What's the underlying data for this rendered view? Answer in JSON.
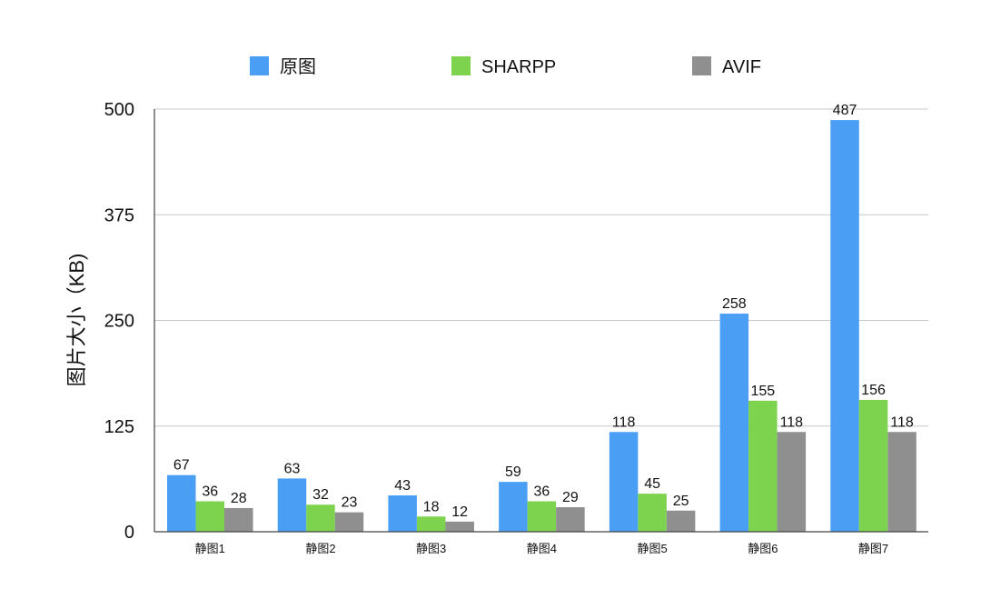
{
  "chart_data": {
    "type": "bar",
    "categories": [
      "静图1",
      "静图2",
      "静图3",
      "静图4",
      "静图5",
      "静图6",
      "静图7"
    ],
    "series": [
      {
        "name": "原图",
        "color": "#4a9ff5",
        "values": [
          67,
          63,
          43,
          59,
          118,
          258,
          487
        ]
      },
      {
        "name": "SHARPP",
        "color": "#7dd24e",
        "values": [
          36,
          32,
          18,
          36,
          45,
          155,
          156
        ]
      },
      {
        "name": "AVIF",
        "color": "#8f8f8f",
        "values": [
          28,
          23,
          12,
          29,
          25,
          118,
          118
        ]
      }
    ],
    "ylabel": "图片大小（KB)",
    "xlabel": "",
    "ylim": [
      0,
      500
    ],
    "yticks": [
      0,
      125,
      250,
      375,
      500
    ],
    "grid": true,
    "legend_position": "top"
  }
}
